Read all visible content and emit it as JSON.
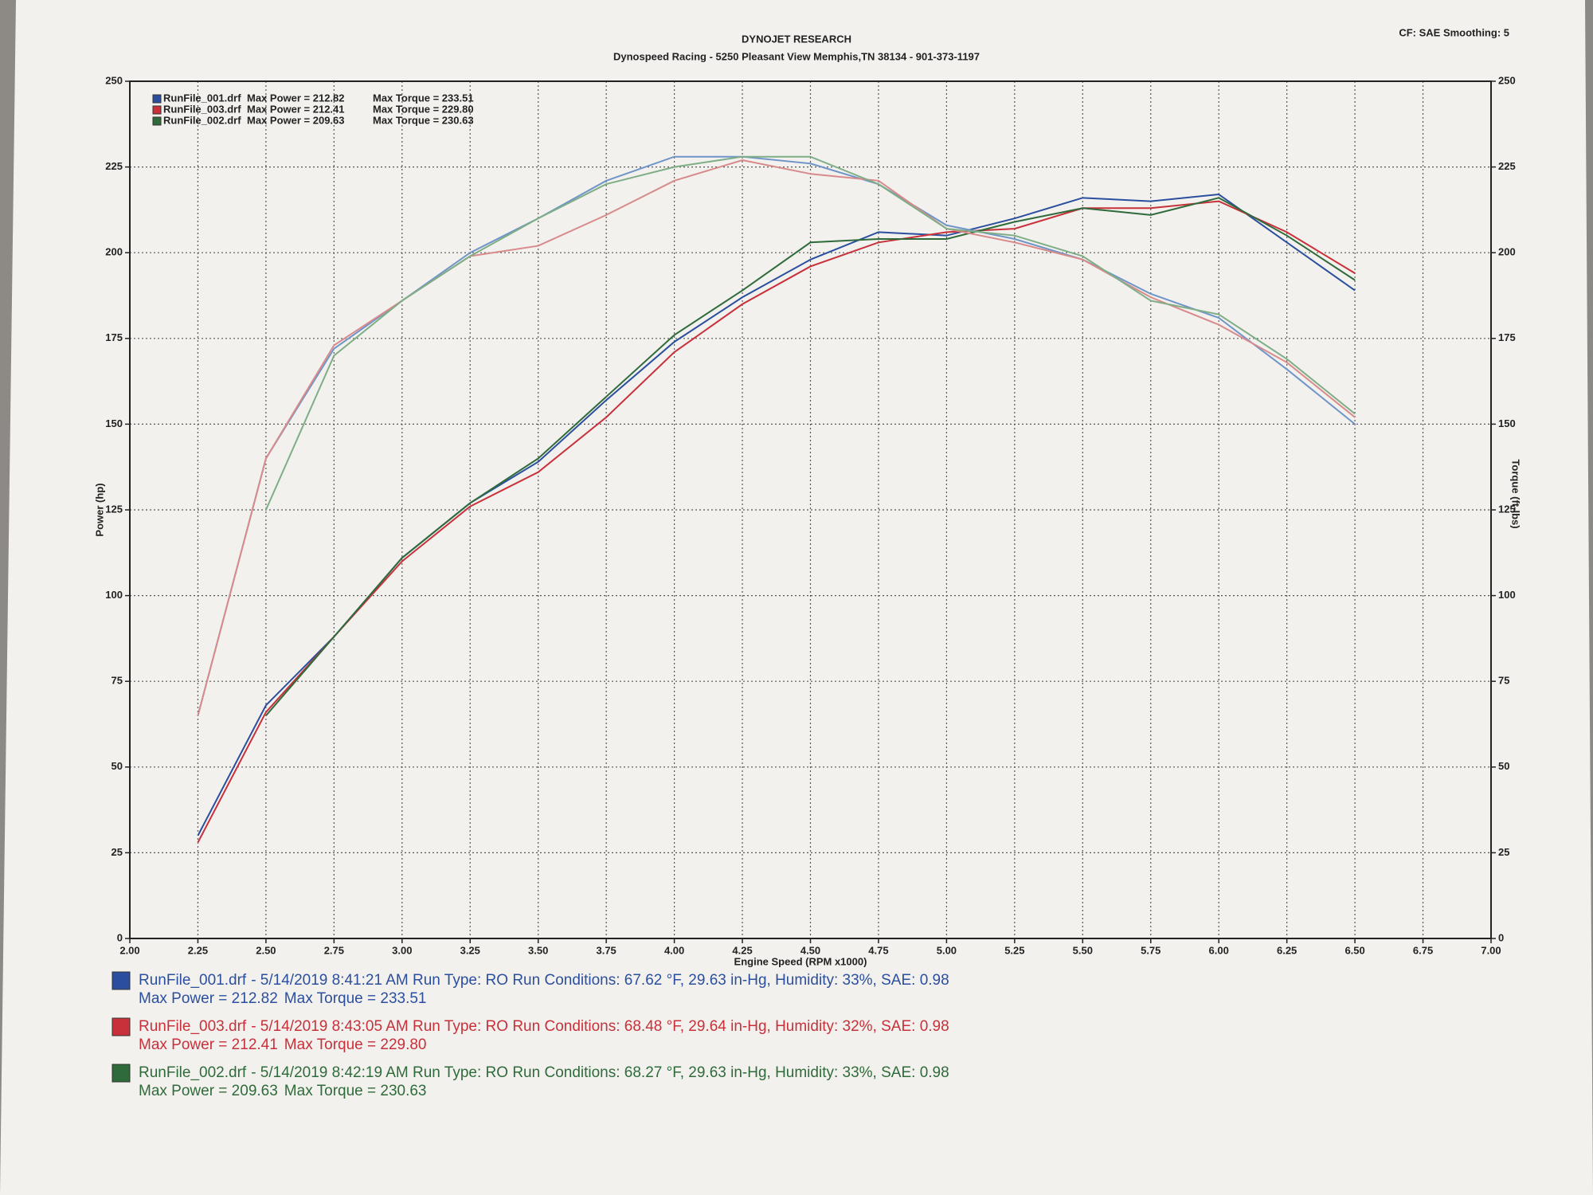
{
  "chart_data": {
    "type": "line",
    "title": "DYNOJET RESEARCH",
    "subtitle": "Dynospeed  Racing - 5250 Pleasant View Memphis,TN 38134 - 901-373-1197",
    "corner_note": "CF: SAE  Smoothing: 5",
    "x_label": "Engine Speed (RPM x1000)",
    "y_label": "Power (hp)",
    "y2_label": "Torque (ft-lbs)",
    "grid": true,
    "x": [
      2.25,
      2.5,
      2.75,
      3.0,
      3.25,
      3.5,
      3.75,
      4.0,
      4.25,
      4.5,
      4.75,
      5.0,
      5.25,
      5.5,
      5.75,
      6.0,
      6.25,
      6.5
    ],
    "xlim": [
      2,
      7
    ],
    "xticks": [
      {
        "value": 2,
        "label": "2.00"
      },
      {
        "value": 2.25,
        "label": "2.25"
      },
      {
        "value": 2.5,
        "label": "2.50"
      },
      {
        "value": 2.75,
        "label": "2.75"
      },
      {
        "value": 3,
        "label": "3.00"
      },
      {
        "value": 3.25,
        "label": "3.25"
      },
      {
        "value": 3.5,
        "label": "3.50"
      },
      {
        "value": 3.75,
        "label": "3.75"
      },
      {
        "value": 4,
        "label": "4.00"
      },
      {
        "value": 4.25,
        "label": "4.25"
      },
      {
        "value": 4.5,
        "label": "4.50"
      },
      {
        "value": 4.75,
        "label": "4.75"
      },
      {
        "value": 5,
        "label": "5.00"
      },
      {
        "value": 5.25,
        "label": "5.25"
      },
      {
        "value": 5.5,
        "label": "5.50"
      },
      {
        "value": 5.75,
        "label": "5.75"
      },
      {
        "value": 6,
        "label": "6.00"
      },
      {
        "value": 6.25,
        "label": "6.25"
      },
      {
        "value": 6.5,
        "label": "6.50"
      },
      {
        "value": 6.75,
        "label": "6.75"
      },
      {
        "value": 7,
        "label": "7.00"
      }
    ],
    "ylim": [
      0,
      250
    ],
    "yticks": [
      0,
      25,
      50,
      75,
      100,
      125,
      150,
      175,
      200,
      225,
      250
    ],
    "y2lim": [
      0,
      250
    ],
    "y2ticks": [
      0,
      25,
      50,
      75,
      100,
      125,
      150,
      175,
      200,
      225,
      250
    ],
    "runs": [
      {
        "name": "RunFile_001.drf",
        "color": "#2b4f9e",
        "max_power": "Max Power = 212.82",
        "max_torque": "Max Torque = 233.51",
        "info": "- 5/14/2019 8:41:21 AM  Run Type: RO  Run Conditions: 67.62 °F, 29.63 in-Hg,  Humidity:  33%, SAE: 0.98"
      },
      {
        "name": "RunFile_003.drf",
        "color": "#c8303a",
        "max_power": "Max Power = 212.41",
        "max_torque": "Max Torque = 229.80",
        "info": "- 5/14/2019 8:43:05 AM  Run Type: RO  Run Conditions: 68.48 °F, 29.64 in-Hg,  Humidity:  32%, SAE: 0.98"
      },
      {
        "name": "RunFile_002.drf",
        "color": "#2f6b3a",
        "max_power": "Max Power = 209.63",
        "max_torque": "Max Torque = 230.63",
        "info": "- 5/14/2019 8:42:19 AM  Run Type: RO  Run Conditions: 68.27 °F, 29.63 in-Hg,  Humidity:  33%, SAE: 0.98"
      }
    ],
    "series": [
      {
        "run": 0,
        "color": "#2b4f9e",
        "values": [
          30,
          68,
          88,
          111,
          127,
          139,
          157,
          174,
          187,
          198,
          206,
          205,
          210,
          216,
          215,
          217,
          203,
          189
        ]
      },
      {
        "run": 1,
        "color": "#c8303a",
        "values": [
          28,
          66,
          88,
          110,
          126,
          136,
          152,
          171,
          185,
          196,
          203,
          206,
          207,
          213,
          213,
          215,
          206,
          194
        ]
      },
      {
        "run": 2,
        "color": "#2f6b3a",
        "values": [
          null,
          65,
          88,
          111,
          127,
          140,
          158,
          176,
          189,
          203,
          204,
          204,
          209,
          213,
          211,
          216,
          205,
          192
        ]
      },
      {
        "run": 0,
        "axis": "y2",
        "color": "#6f95c8",
        "values": [
          65,
          140,
          172,
          186,
          200,
          210,
          221,
          228,
          228,
          226,
          220,
          208,
          204,
          198,
          188,
          181,
          166,
          150
        ]
      },
      {
        "run": 1,
        "axis": "y2",
        "color": "#d98a8a",
        "values": [
          65,
          140,
          173,
          186,
          199,
          202,
          211,
          221,
          227,
          223,
          221,
          207,
          203,
          198,
          187,
          179,
          168,
          152
        ]
      },
      {
        "run": 2,
        "axis": "y2",
        "color": "#7fae86",
        "values": [
          null,
          125,
          170,
          186,
          199,
          210,
          220,
          225,
          228,
          228,
          220,
          207,
          205,
          199,
          186,
          182,
          169,
          153
        ]
      }
    ]
  }
}
